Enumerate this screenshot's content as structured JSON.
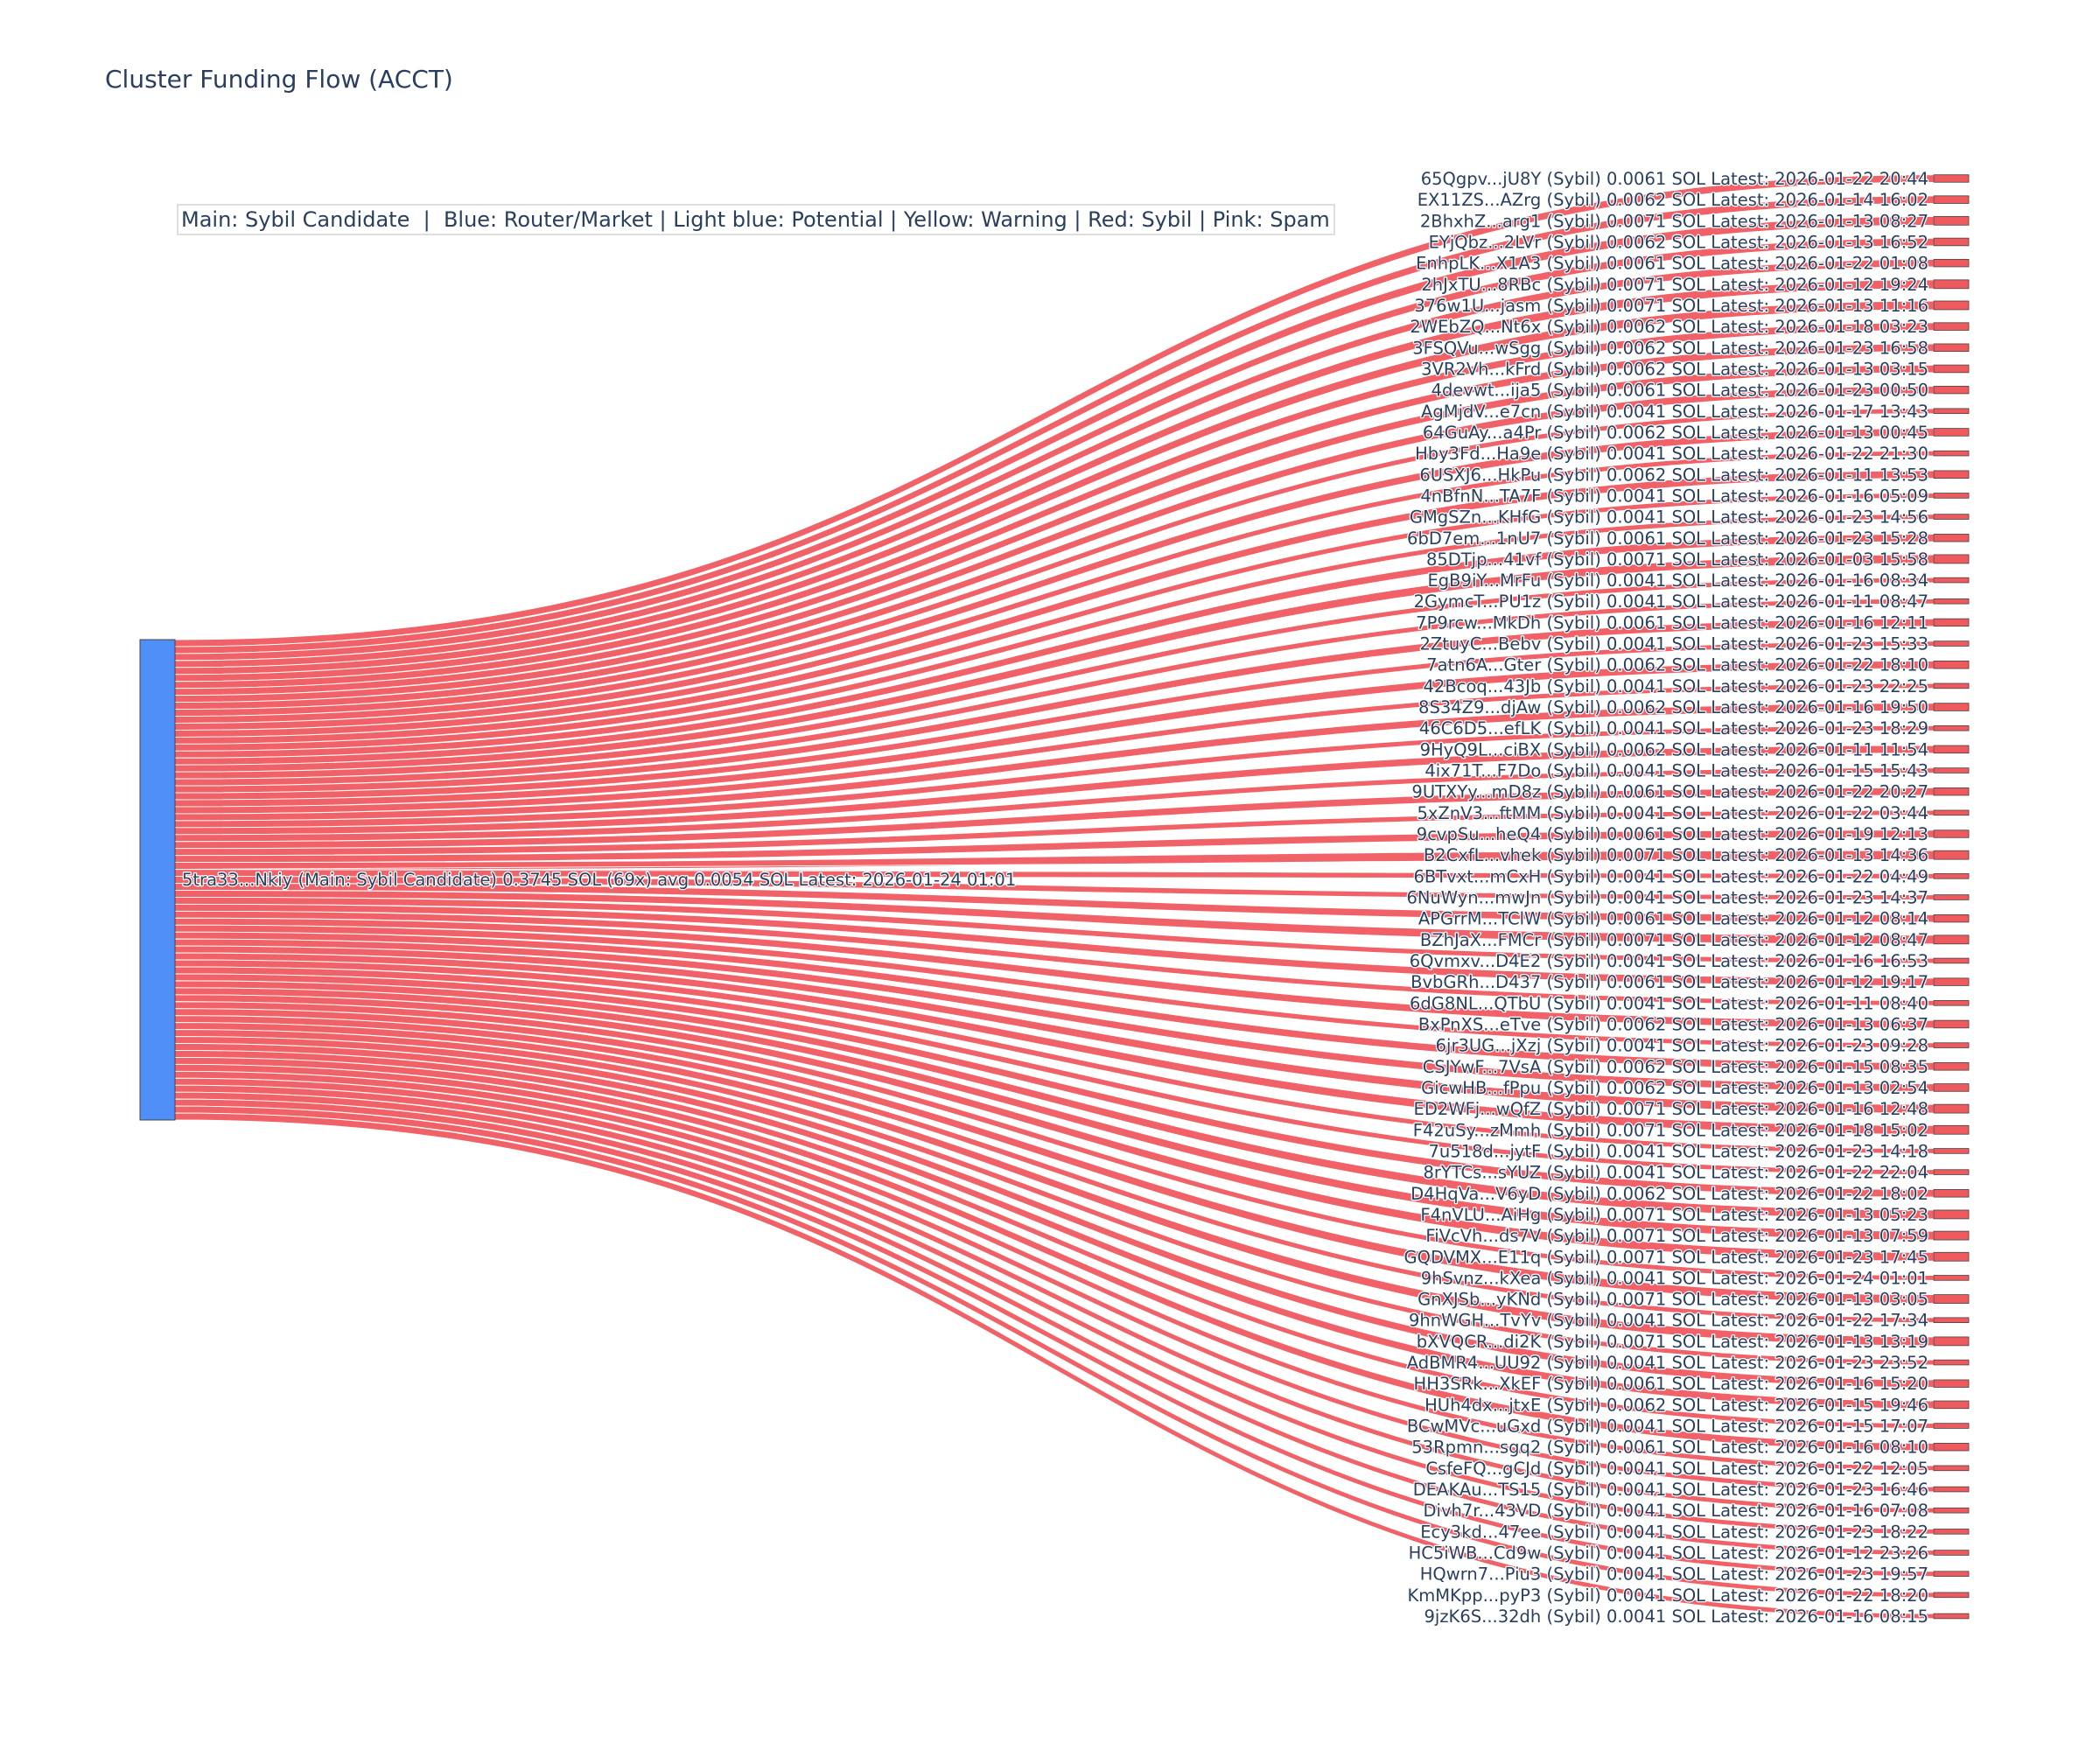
{
  "chart_data": {
    "type": "sankey",
    "title": "Cluster Funding Flow (ACCT)",
    "annotation": "Main: Sybil Candidate  |  Blue: Router/Market | Light blue: Potential | Yellow: Warning | Red: Sybil | Pink: Spam",
    "colors": {
      "source_node": "#4f8ff7",
      "target_node": "#ef5a5f",
      "link": "#ef5a5f"
    },
    "source": {
      "label": "5tra33...Nkiy (Main: Sybil Candidate) 0.3745 SOL (69x) avg 0.0054 SOL Latest: 2026-01-24 01:01",
      "value": 0.3745
    },
    "targets": [
      {
        "label": "65Qgpv...jU8Y (Sybil) 0.0061 SOL Latest: 2026-01-22 20:44",
        "value": 0.0061
      },
      {
        "label": "EX11ZS...AZrg (Sybil) 0.0062 SOL Latest: 2026-01-14 16:02",
        "value": 0.0062
      },
      {
        "label": "2BhxhZ...arg1 (Sybil) 0.0071 SOL Latest: 2026-01-13 08:27",
        "value": 0.0071
      },
      {
        "label": "EYjQbz...2LVr (Sybil) 0.0062 SOL Latest: 2026-01-13 16:52",
        "value": 0.0062
      },
      {
        "label": "EnhpLK...X1A3 (Sybil) 0.0061 SOL Latest: 2026-01-22 01:08",
        "value": 0.0061
      },
      {
        "label": "2hJxTU...8RBc (Sybil) 0.0071 SOL Latest: 2026-01-12 19:24",
        "value": 0.0071
      },
      {
        "label": "376w1U...jasm (Sybil) 0.0071 SOL Latest: 2026-01-13 11:16",
        "value": 0.0071
      },
      {
        "label": "2WEbZQ...Nt6x (Sybil) 0.0062 SOL Latest: 2026-01-18 03:23",
        "value": 0.0062
      },
      {
        "label": "3FSQVu...wSgg (Sybil) 0.0062 SOL Latest: 2026-01-23 16:58",
        "value": 0.0062
      },
      {
        "label": "3VR2Vh...kFrd (Sybil) 0.0062 SOL Latest: 2026-01-13 03:15",
        "value": 0.0062
      },
      {
        "label": "4devwt...ija5 (Sybil) 0.0061 SOL Latest: 2026-01-23 00:50",
        "value": 0.0061
      },
      {
        "label": "AgMjdV...e7cn (Sybil) 0.0041 SOL Latest: 2026-01-17 13:43",
        "value": 0.0041
      },
      {
        "label": "64GuAy...a4Pr (Sybil) 0.0062 SOL Latest: 2026-01-13 00:45",
        "value": 0.0062
      },
      {
        "label": "Hby3Fd...Ha9e (Sybil) 0.0041 SOL Latest: 2026-01-22 21:30",
        "value": 0.0041
      },
      {
        "label": "6USXJ6...HkPu (Sybil) 0.0062 SOL Latest: 2026-01-11 13:53",
        "value": 0.0062
      },
      {
        "label": "4nBfnN...TA7F (Sybil) 0.0041 SOL Latest: 2026-01-16 05:09",
        "value": 0.0041
      },
      {
        "label": "GMgSZn...KHfG (Sybil) 0.0041 SOL Latest: 2026-01-23 14:56",
        "value": 0.0041
      },
      {
        "label": "6bD7em...1nU7 (Sybil) 0.0061 SOL Latest: 2026-01-23 15:28",
        "value": 0.0061
      },
      {
        "label": "85DTjp...41vf (Sybil) 0.0071 SOL Latest: 2026-01-03 15:58",
        "value": 0.0071
      },
      {
        "label": "EgB9iY...MrFu (Sybil) 0.0041 SOL Latest: 2026-01-16 08:34",
        "value": 0.0041
      },
      {
        "label": "2GymcT...PU1z (Sybil) 0.0041 SOL Latest: 2026-01-11 08:47",
        "value": 0.0041
      },
      {
        "label": "7P9rcw...MkDh (Sybil) 0.0061 SOL Latest: 2026-01-16 12:11",
        "value": 0.0061
      },
      {
        "label": "2ZtuyC...Bebv (Sybil) 0.0041 SOL Latest: 2026-01-23 15:33",
        "value": 0.0041
      },
      {
        "label": "7atn6A...Gter (Sybil) 0.0062 SOL Latest: 2026-01-22 18:10",
        "value": 0.0062
      },
      {
        "label": "42Bcoq...43Jb (Sybil) 0.0041 SOL Latest: 2026-01-23 22:25",
        "value": 0.0041
      },
      {
        "label": "8S34Z9...djAw (Sybil) 0.0062 SOL Latest: 2026-01-16 19:50",
        "value": 0.0062
      },
      {
        "label": "46C6D5...efLK (Sybil) 0.0041 SOL Latest: 2026-01-23 18:29",
        "value": 0.0041
      },
      {
        "label": "9HyQ9L...ciBX (Sybil) 0.0062 SOL Latest: 2026-01-11 11:54",
        "value": 0.0062
      },
      {
        "label": "4ix71T...F7Do (Sybil) 0.0041 SOL Latest: 2026-01-15 15:43",
        "value": 0.0041
      },
      {
        "label": "9UTXYy...mD8z (Sybil) 0.0061 SOL Latest: 2026-01-22 20:27",
        "value": 0.0061
      },
      {
        "label": "5xZnV3...ftMM (Sybil) 0.0041 SOL Latest: 2026-01-22 03:44",
        "value": 0.0041
      },
      {
        "label": "9cvpSu...heQ4 (Sybil) 0.0061 SOL Latest: 2026-01-19 12:13",
        "value": 0.0061
      },
      {
        "label": "B2CxfL...vhek (Sybil) 0.0071 SOL Latest: 2026-01-13 14:36",
        "value": 0.0071
      },
      {
        "label": "6BTvxt...mCxH (Sybil) 0.0041 SOL Latest: 2026-01-22 04:49",
        "value": 0.0041
      },
      {
        "label": "6NuWyn...mwJn (Sybil) 0.0041 SOL Latest: 2026-01-23 14:37",
        "value": 0.0041
      },
      {
        "label": "APGrrM...TClW (Sybil) 0.0061 SOL Latest: 2026-01-12 08:14",
        "value": 0.0061
      },
      {
        "label": "BZhJaX...FMCr (Sybil) 0.0071 SOL Latest: 2026-01-12 08:47",
        "value": 0.0071
      },
      {
        "label": "6Qvmxv...D4E2 (Sybil) 0.0041 SOL Latest: 2026-01-16 16:53",
        "value": 0.0041
      },
      {
        "label": "BvbGRh...D437 (Sybil) 0.0061 SOL Latest: 2026-01-12 19:17",
        "value": 0.0061
      },
      {
        "label": "6dG8NL...QTbU (Sybil) 0.0041 SOL Latest: 2026-01-11 08:40",
        "value": 0.0041
      },
      {
        "label": "BxPnXS...eTve (Sybil) 0.0062 SOL Latest: 2026-01-13 06:37",
        "value": 0.0062
      },
      {
        "label": "6jr3UG...jXzj (Sybil) 0.0041 SOL Latest: 2026-01-23 09:28",
        "value": 0.0041
      },
      {
        "label": "CSJYwF...7VsA (Sybil) 0.0062 SOL Latest: 2026-01-15 08:35",
        "value": 0.0062
      },
      {
        "label": "GicwHB...fPpu (Sybil) 0.0062 SOL Latest: 2026-01-13 02:54",
        "value": 0.0062
      },
      {
        "label": "ED2WFj...wQfZ (Sybil) 0.0071 SOL Latest: 2026-01-16 12:48",
        "value": 0.0071
      },
      {
        "label": "F42uSy...zMmh (Sybil) 0.0071 SOL Latest: 2026-01-18 15:02",
        "value": 0.0071
      },
      {
        "label": "7u518d...jytF (Sybil) 0.0041 SOL Latest: 2026-01-23 14:18",
        "value": 0.0041
      },
      {
        "label": "8rYTCs...sYUZ (Sybil) 0.0041 SOL Latest: 2026-01-22 22:04",
        "value": 0.0041
      },
      {
        "label": "D4HqVa...V6yD (Sybil) 0.0062 SOL Latest: 2026-01-22 18:02",
        "value": 0.0062
      },
      {
        "label": "F4nVLU...AiHg (Sybil) 0.0071 SOL Latest: 2026-01-13 05:23",
        "value": 0.0071
      },
      {
        "label": "FiVcVh...ds7V (Sybil) 0.0071 SOL Latest: 2026-01-13 07:59",
        "value": 0.0071
      },
      {
        "label": "GQDVMX...E11q (Sybil) 0.0071 SOL Latest: 2026-01-23 17:45",
        "value": 0.0071
      },
      {
        "label": "9hSvnz...kXea (Sybil) 0.0041 SOL Latest: 2026-01-24 01:01",
        "value": 0.0041
      },
      {
        "label": "GnXJSb...yKNd (Sybil) 0.0071 SOL Latest: 2026-01-13 03:05",
        "value": 0.0071
      },
      {
        "label": "9hnWGH...TvYv (Sybil) 0.0041 SOL Latest: 2026-01-22 17:34",
        "value": 0.0041
      },
      {
        "label": "bXVQCR...di2K (Sybil) 0.0071 SOL Latest: 2026-01-13 13:19",
        "value": 0.0071
      },
      {
        "label": "AdBMR4...UU92 (Sybil) 0.0041 SOL Latest: 2026-01-23 23:52",
        "value": 0.0041
      },
      {
        "label": "HH3SRk...XkEF (Sybil) 0.0061 SOL Latest: 2026-01-16 15:20",
        "value": 0.0061
      },
      {
        "label": "HUh4dx...jtxE (Sybil) 0.0062 SOL Latest: 2026-01-15 19:46",
        "value": 0.0062
      },
      {
        "label": "BCwMVc...uGxd (Sybil) 0.0041 SOL Latest: 2026-01-15 17:07",
        "value": 0.0041
      },
      {
        "label": "53Rpmn...sgq2 (Sybil) 0.0061 SOL Latest: 2026-01-16 08:10",
        "value": 0.0061
      },
      {
        "label": "CsfeFQ...gCJd (Sybil) 0.0041 SOL Latest: 2026-01-22 12:05",
        "value": 0.0041
      },
      {
        "label": "DEAKAu...TS15 (Sybil) 0.0041 SOL Latest: 2026-01-23 16:46",
        "value": 0.0041
      },
      {
        "label": "Divh7r...43VD (Sybil) 0.0041 SOL Latest: 2026-01-16 07:08",
        "value": 0.0041
      },
      {
        "label": "Ecy3kd...47ee (Sybil) 0.0041 SOL Latest: 2026-01-23 18:22",
        "value": 0.0041
      },
      {
        "label": "HC5iWB...Cd9w (Sybil) 0.0041 SOL Latest: 2026-01-12 23:26",
        "value": 0.0041
      },
      {
        "label": "HQwrn7...Piu3 (Sybil) 0.0041 SOL Latest: 2026-01-23 19:57",
        "value": 0.0041
      },
      {
        "label": "KmMKpp...pyP3 (Sybil) 0.0041 SOL Latest: 2026-01-22 18:20",
        "value": 0.0041
      },
      {
        "label": "9jzK6S...32dh (Sybil) 0.0041 SOL Latest: 2026-01-16 08:15",
        "value": 0.0041
      }
    ]
  }
}
